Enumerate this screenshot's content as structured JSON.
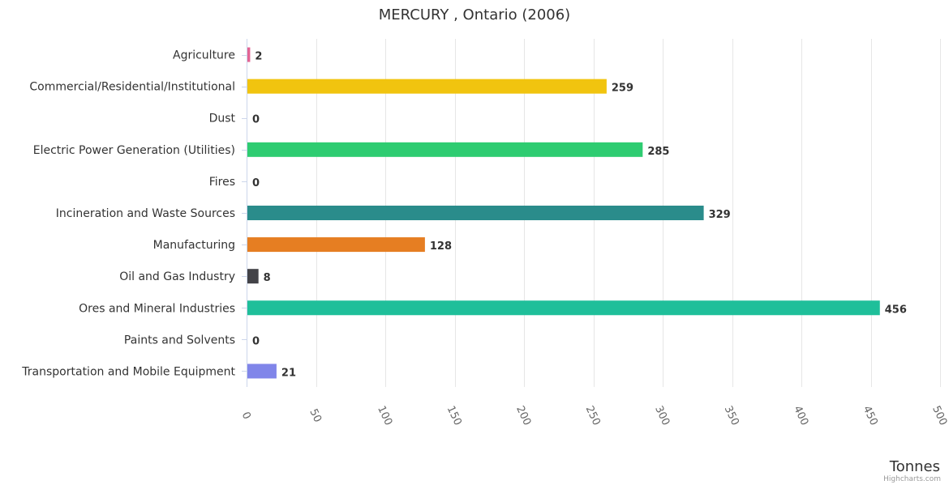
{
  "chart_data": {
    "type": "bar",
    "orientation": "horizontal",
    "title": "MERCURY , Ontario (2006)",
    "xlabel": "Tonnes",
    "ylabel": "",
    "categories": [
      "Agriculture",
      "Commercial/Residential/Institutional",
      "Dust",
      "Electric Power Generation (Utilities)",
      "Fires",
      "Incineration and Waste Sources",
      "Manufacturing",
      "Oil and Gas Industry",
      "Ores and Mineral Industries",
      "Paints and Solvents",
      "Transportation and Mobile Equipment"
    ],
    "values": [
      2,
      259,
      0,
      285,
      0,
      329,
      128,
      8,
      456,
      0,
      21
    ],
    "colors": [
      "#e36494",
      "#f1c40f",
      "#a78bfa",
      "#2ecc71",
      "#e74c3c",
      "#2a8c8b",
      "#e67e22",
      "#434348",
      "#1fbf9a",
      "#9b59b6",
      "#8085e9"
    ],
    "xlim": [
      0,
      500
    ],
    "ticks": [
      0,
      50,
      100,
      150,
      200,
      250,
      300,
      350,
      400,
      450,
      500
    ],
    "grid": true,
    "legend": "none"
  },
  "credits": "Highcharts.com"
}
